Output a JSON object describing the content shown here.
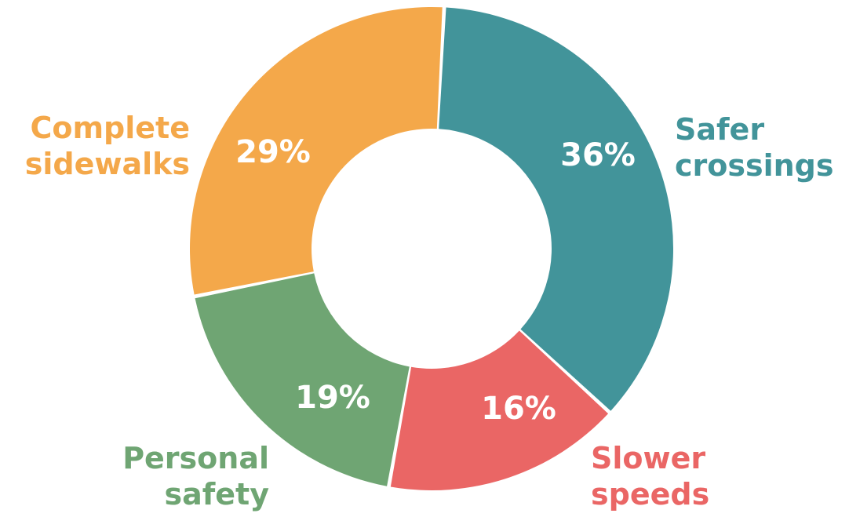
{
  "chart_data": {
    "type": "pie",
    "title": "",
    "categories": [
      "Safer crossings",
      "Slower speeds",
      "Personal safety",
      "Complete sidewalks"
    ],
    "values": [
      36,
      16,
      19,
      29
    ],
    "unit": "%",
    "donut": true,
    "legend": "none",
    "slices": [
      {
        "label_lines": [
          "Safer",
          "crossings"
        ],
        "value": 36,
        "display": "36%",
        "color": "#42949a"
      },
      {
        "label_lines": [
          "Slower",
          "speeds"
        ],
        "value": 16,
        "display": "16%",
        "color": "#ea6665"
      },
      {
        "label_lines": [
          "Personal",
          "safety"
        ],
        "value": 19,
        "display": "19%",
        "color": "#6fa573"
      },
      {
        "label_lines": [
          "Complete",
          "sidewalks"
        ],
        "value": 29,
        "display": "29%",
        "color": "#f4a84a"
      }
    ]
  }
}
